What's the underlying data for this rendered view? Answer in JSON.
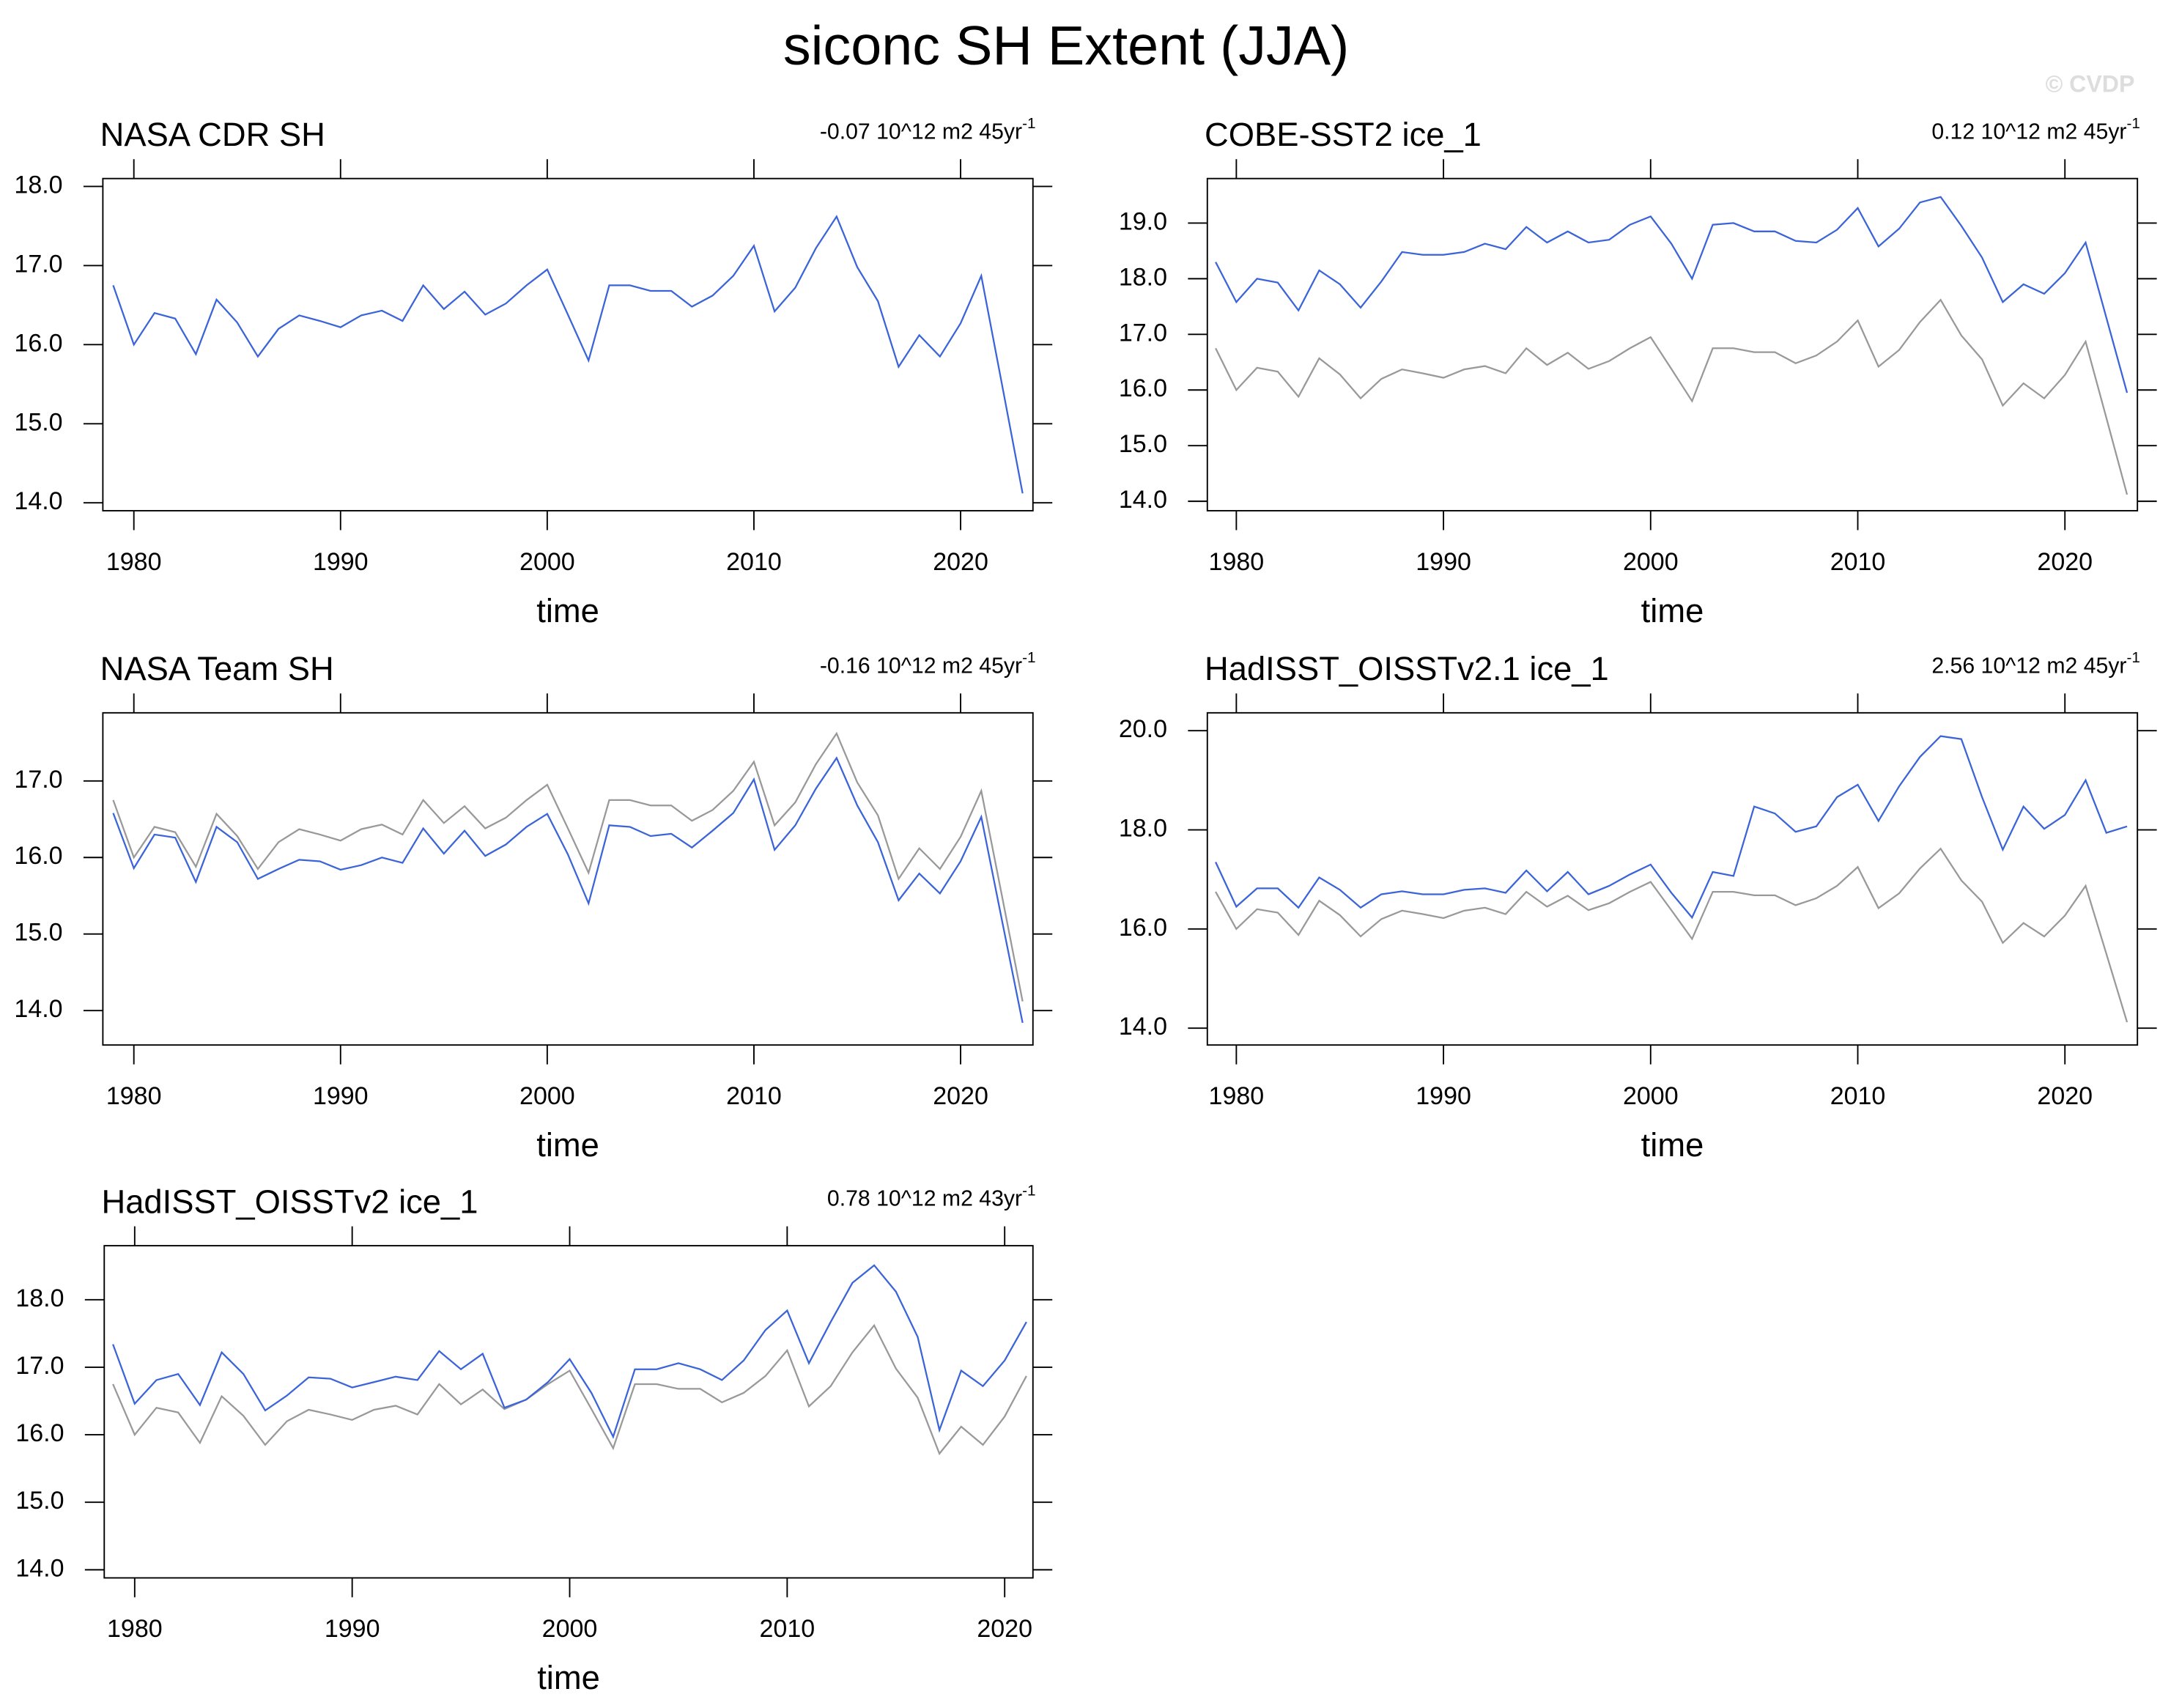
{
  "title": "siconc SH Extent (JJA)",
  "watermark": "© CVDP",
  "chart_data": [
    {
      "type": "line",
      "title": "NASA CDR SH",
      "trend": "-0.07 10^12 m2 45yr",
      "trend_exponent": "-1",
      "xlabel": "time",
      "x": [
        1979,
        1980,
        1981,
        1982,
        1983,
        1984,
        1985,
        1986,
        1987,
        1988,
        1989,
        1990,
        1991,
        1992,
        1993,
        1994,
        1995,
        1996,
        1997,
        1998,
        1999,
        2000,
        2001,
        2002,
        2003,
        2004,
        2005,
        2006,
        2007,
        2008,
        2009,
        2010,
        2011,
        2012,
        2013,
        2014,
        2015,
        2016,
        2017,
        2018,
        2019,
        2020,
        2021,
        2022,
        2023
      ],
      "series": [
        {
          "color": "#3a64d8",
          "values": [
            16.75,
            16.0,
            16.4,
            16.33,
            15.88,
            16.57,
            16.28,
            15.85,
            16.2,
            16.37,
            16.3,
            16.22,
            16.37,
            16.43,
            16.3,
            16.75,
            16.45,
            16.67,
            16.38,
            16.52,
            16.75,
            16.95,
            16.38,
            15.8,
            16.75,
            16.75,
            16.68,
            16.68,
            16.48,
            16.62,
            16.87,
            17.25,
            16.42,
            16.72,
            17.22,
            17.62,
            16.98,
            16.55,
            15.72,
            16.12,
            15.85,
            16.27,
            16.87,
            15.5,
            14.12
          ]
        }
      ],
      "xlim": [
        1978.5,
        2023.5
      ],
      "xticks": [
        1980,
        1990,
        2000,
        2010,
        2020
      ],
      "ylim": [
        13.9,
        18.1
      ],
      "yticks": [
        {
          "value": 14,
          "label": "14.0"
        },
        {
          "value": 15,
          "label": "15.0"
        },
        {
          "value": 16,
          "label": "16.0"
        },
        {
          "value": 17,
          "label": "17.0"
        },
        {
          "value": 18,
          "label": "18.0"
        }
      ]
    },
    {
      "type": "line",
      "title": "COBE-SST2 ice_1",
      "trend": "0.12 10^12 m2 45yr",
      "trend_exponent": "-1",
      "xlabel": "time",
      "x": [
        1979,
        1980,
        1981,
        1982,
        1983,
        1984,
        1985,
        1986,
        1987,
        1988,
        1989,
        1990,
        1991,
        1992,
        1993,
        1994,
        1995,
        1996,
        1997,
        1998,
        1999,
        2000,
        2001,
        2002,
        2003,
        2004,
        2005,
        2006,
        2007,
        2008,
        2009,
        2010,
        2011,
        2012,
        2013,
        2014,
        2015,
        2016,
        2017,
        2018,
        2019,
        2020,
        2021,
        2022,
        2023
      ],
      "series": [
        {
          "color": "#999999",
          "values": [
            16.75,
            16.0,
            16.4,
            16.33,
            15.88,
            16.57,
            16.28,
            15.85,
            16.2,
            16.37,
            16.3,
            16.22,
            16.37,
            16.43,
            16.3,
            16.75,
            16.45,
            16.67,
            16.38,
            16.52,
            16.75,
            16.95,
            16.38,
            15.8,
            16.75,
            16.75,
            16.68,
            16.68,
            16.48,
            16.62,
            16.87,
            17.25,
            16.42,
            16.72,
            17.22,
            17.62,
            16.98,
            16.55,
            15.72,
            16.12,
            15.85,
            16.27,
            16.87,
            15.5,
            14.12
          ]
        },
        {
          "color": "#3a64d8",
          "values": [
            18.3,
            17.58,
            18.0,
            17.93,
            17.43,
            18.15,
            17.9,
            17.48,
            17.95,
            18.48,
            18.43,
            18.43,
            18.48,
            18.63,
            18.53,
            18.93,
            18.65,
            18.85,
            18.65,
            18.7,
            18.97,
            19.12,
            18.63,
            18.0,
            18.97,
            19.0,
            18.85,
            18.85,
            18.68,
            18.65,
            18.88,
            19.27,
            18.58,
            18.9,
            19.37,
            19.47,
            18.95,
            18.38,
            17.58,
            17.9,
            17.73,
            18.1,
            18.65,
            17.3,
            15.95
          ]
        }
      ],
      "xlim": [
        1978.6,
        2023.5
      ],
      "xticks": [
        1980,
        1990,
        2000,
        2010,
        2020
      ],
      "ylim": [
        13.83,
        19.8
      ],
      "yticks": [
        {
          "value": 14,
          "label": "14.0"
        },
        {
          "value": 15,
          "label": "15.0"
        },
        {
          "value": 16,
          "label": "16.0"
        },
        {
          "value": 17,
          "label": "17.0"
        },
        {
          "value": 18,
          "label": "18.0"
        },
        {
          "value": 19,
          "label": "19.0"
        }
      ]
    },
    {
      "type": "line",
      "title": "NASA Team SH",
      "trend": "-0.16 10^12 m2 45yr",
      "trend_exponent": "-1",
      "xlabel": "time",
      "x": [
        1979,
        1980,
        1981,
        1982,
        1983,
        1984,
        1985,
        1986,
        1987,
        1988,
        1989,
        1990,
        1991,
        1992,
        1993,
        1994,
        1995,
        1996,
        1997,
        1998,
        1999,
        2000,
        2001,
        2002,
        2003,
        2004,
        2005,
        2006,
        2007,
        2008,
        2009,
        2010,
        2011,
        2012,
        2013,
        2014,
        2015,
        2016,
        2017,
        2018,
        2019,
        2020,
        2021,
        2022,
        2023
      ],
      "series": [
        {
          "color": "#999999",
          "values": [
            16.75,
            16.0,
            16.4,
            16.33,
            15.88,
            16.57,
            16.28,
            15.85,
            16.2,
            16.37,
            16.3,
            16.22,
            16.37,
            16.43,
            16.3,
            16.75,
            16.45,
            16.67,
            16.38,
            16.52,
            16.75,
            16.95,
            16.38,
            15.8,
            16.75,
            16.75,
            16.68,
            16.68,
            16.48,
            16.62,
            16.87,
            17.25,
            16.42,
            16.72,
            17.22,
            17.62,
            16.98,
            16.55,
            15.72,
            16.12,
            15.85,
            16.27,
            16.87,
            15.5,
            14.12
          ]
        },
        {
          "color": "#3a64d8",
          "values": [
            16.58,
            15.86,
            16.3,
            16.26,
            15.68,
            16.4,
            16.2,
            15.72,
            15.85,
            15.97,
            15.95,
            15.84,
            15.9,
            16.0,
            15.93,
            16.38,
            16.05,
            16.35,
            16.02,
            16.17,
            16.4,
            16.57,
            16.04,
            15.4,
            16.42,
            16.4,
            16.28,
            16.31,
            16.13,
            16.35,
            16.58,
            17.02,
            16.1,
            16.42,
            16.9,
            17.3,
            16.68,
            16.2,
            15.44,
            15.79,
            15.53,
            15.95,
            16.53,
            15.18,
            13.84
          ]
        }
      ],
      "xlim": [
        1978.5,
        2023.5
      ],
      "xticks": [
        1980,
        1990,
        2000,
        2010,
        2020
      ],
      "ylim": [
        13.55,
        17.89
      ],
      "yticks": [
        {
          "value": 14,
          "label": "14.0"
        },
        {
          "value": 15,
          "label": "15.0"
        },
        {
          "value": 16,
          "label": "16.0"
        },
        {
          "value": 17,
          "label": "17.0"
        }
      ]
    },
    {
      "type": "line",
      "title": "HadISST_OISSTv2.1 ice_1",
      "trend": "2.56 10^12 m2 45yr",
      "trend_exponent": "-1",
      "xlabel": "time",
      "x": [
        1979,
        1980,
        1981,
        1982,
        1983,
        1984,
        1985,
        1986,
        1987,
        1988,
        1989,
        1990,
        1991,
        1992,
        1993,
        1994,
        1995,
        1996,
        1997,
        1998,
        1999,
        2000,
        2001,
        2002,
        2003,
        2004,
        2005,
        2006,
        2007,
        2008,
        2009,
        2010,
        2011,
        2012,
        2013,
        2014,
        2015,
        2016,
        2017,
        2018,
        2019,
        2020,
        2021,
        2022,
        2023
      ],
      "series": [
        {
          "color": "#999999",
          "values": [
            16.75,
            16.0,
            16.4,
            16.33,
            15.88,
            16.57,
            16.28,
            15.85,
            16.2,
            16.37,
            16.3,
            16.22,
            16.37,
            16.43,
            16.3,
            16.75,
            16.45,
            16.67,
            16.38,
            16.52,
            16.75,
            16.95,
            16.38,
            15.8,
            16.75,
            16.75,
            16.68,
            16.68,
            16.48,
            16.62,
            16.87,
            17.25,
            16.42,
            16.72,
            17.22,
            17.62,
            16.98,
            16.55,
            15.72,
            16.12,
            15.85,
            16.27,
            16.87,
            15.5,
            14.12
          ]
        },
        {
          "color": "#3a64d8",
          "values": [
            17.35,
            16.45,
            16.82,
            16.82,
            16.43,
            17.04,
            16.79,
            16.43,
            16.7,
            16.76,
            16.7,
            16.7,
            16.79,
            16.82,
            16.73,
            17.18,
            16.76,
            17.15,
            16.7,
            16.87,
            17.1,
            17.3,
            16.73,
            16.23,
            17.15,
            17.07,
            18.47,
            18.33,
            17.96,
            18.07,
            18.66,
            18.91,
            18.18,
            18.88,
            19.47,
            19.89,
            19.83,
            18.66,
            17.6,
            18.47,
            18.02,
            18.3,
            19.0,
            17.94,
            18.07
          ]
        }
      ],
      "xlim": [
        1978.6,
        2023.5
      ],
      "xticks": [
        1980,
        1990,
        2000,
        2010,
        2020
      ],
      "ylim": [
        13.66,
        20.36
      ],
      "yticks": [
        {
          "value": 14,
          "label": "14.0"
        },
        {
          "value": 16,
          "label": "16.0"
        },
        {
          "value": 18,
          "label": "18.0"
        },
        {
          "value": 20,
          "label": "20.0"
        }
      ]
    },
    {
      "type": "line",
      "title": "HadISST_OISSTv2 ice_1",
      "trend": "0.78 10^12 m2 43yr",
      "trend_exponent": "-1",
      "xlabel": "time",
      "x": [
        1979,
        1980,
        1981,
        1982,
        1983,
        1984,
        1985,
        1986,
        1987,
        1988,
        1989,
        1990,
        1991,
        1992,
        1993,
        1994,
        1995,
        1996,
        1997,
        1998,
        1999,
        2000,
        2001,
        2002,
        2003,
        2004,
        2005,
        2006,
        2007,
        2008,
        2009,
        2010,
        2011,
        2012,
        2013,
        2014,
        2015,
        2016,
        2017,
        2018,
        2019,
        2020,
        2021
      ],
      "series": [
        {
          "color": "#999999",
          "values": [
            16.75,
            16.0,
            16.4,
            16.33,
            15.88,
            16.57,
            16.28,
            15.85,
            16.2,
            16.37,
            16.3,
            16.22,
            16.37,
            16.43,
            16.3,
            16.75,
            16.45,
            16.67,
            16.38,
            16.52,
            16.75,
            16.95,
            16.38,
            15.8,
            16.75,
            16.75,
            16.68,
            16.68,
            16.48,
            16.62,
            16.87,
            17.25,
            16.42,
            16.72,
            17.22,
            17.62,
            16.98,
            16.55,
            15.72,
            16.12,
            15.85,
            16.27,
            16.87
          ]
        },
        {
          "color": "#3a64d8",
          "values": [
            17.34,
            16.46,
            16.81,
            16.9,
            16.44,
            17.22,
            16.9,
            16.36,
            16.58,
            16.85,
            16.83,
            16.7,
            16.78,
            16.86,
            16.81,
            17.24,
            16.97,
            17.2,
            16.4,
            16.52,
            16.78,
            17.12,
            16.62,
            15.97,
            16.97,
            16.97,
            17.06,
            16.97,
            16.81,
            17.1,
            17.55,
            17.84,
            17.06,
            17.67,
            18.25,
            18.51,
            18.12,
            17.45,
            16.07,
            16.95,
            16.72,
            17.1,
            17.67
          ]
        }
      ],
      "xlim": [
        1978.6,
        2021.3
      ],
      "xticks": [
        1980,
        1990,
        2000,
        2010,
        2020
      ],
      "ylim": [
        13.88,
        18.8
      ],
      "yticks": [
        {
          "value": 14,
          "label": "14.0"
        },
        {
          "value": 15,
          "label": "15.0"
        },
        {
          "value": 16,
          "label": "16.0"
        },
        {
          "value": 17,
          "label": "17.0"
        },
        {
          "value": 18,
          "label": "18.0"
        }
      ]
    }
  ]
}
